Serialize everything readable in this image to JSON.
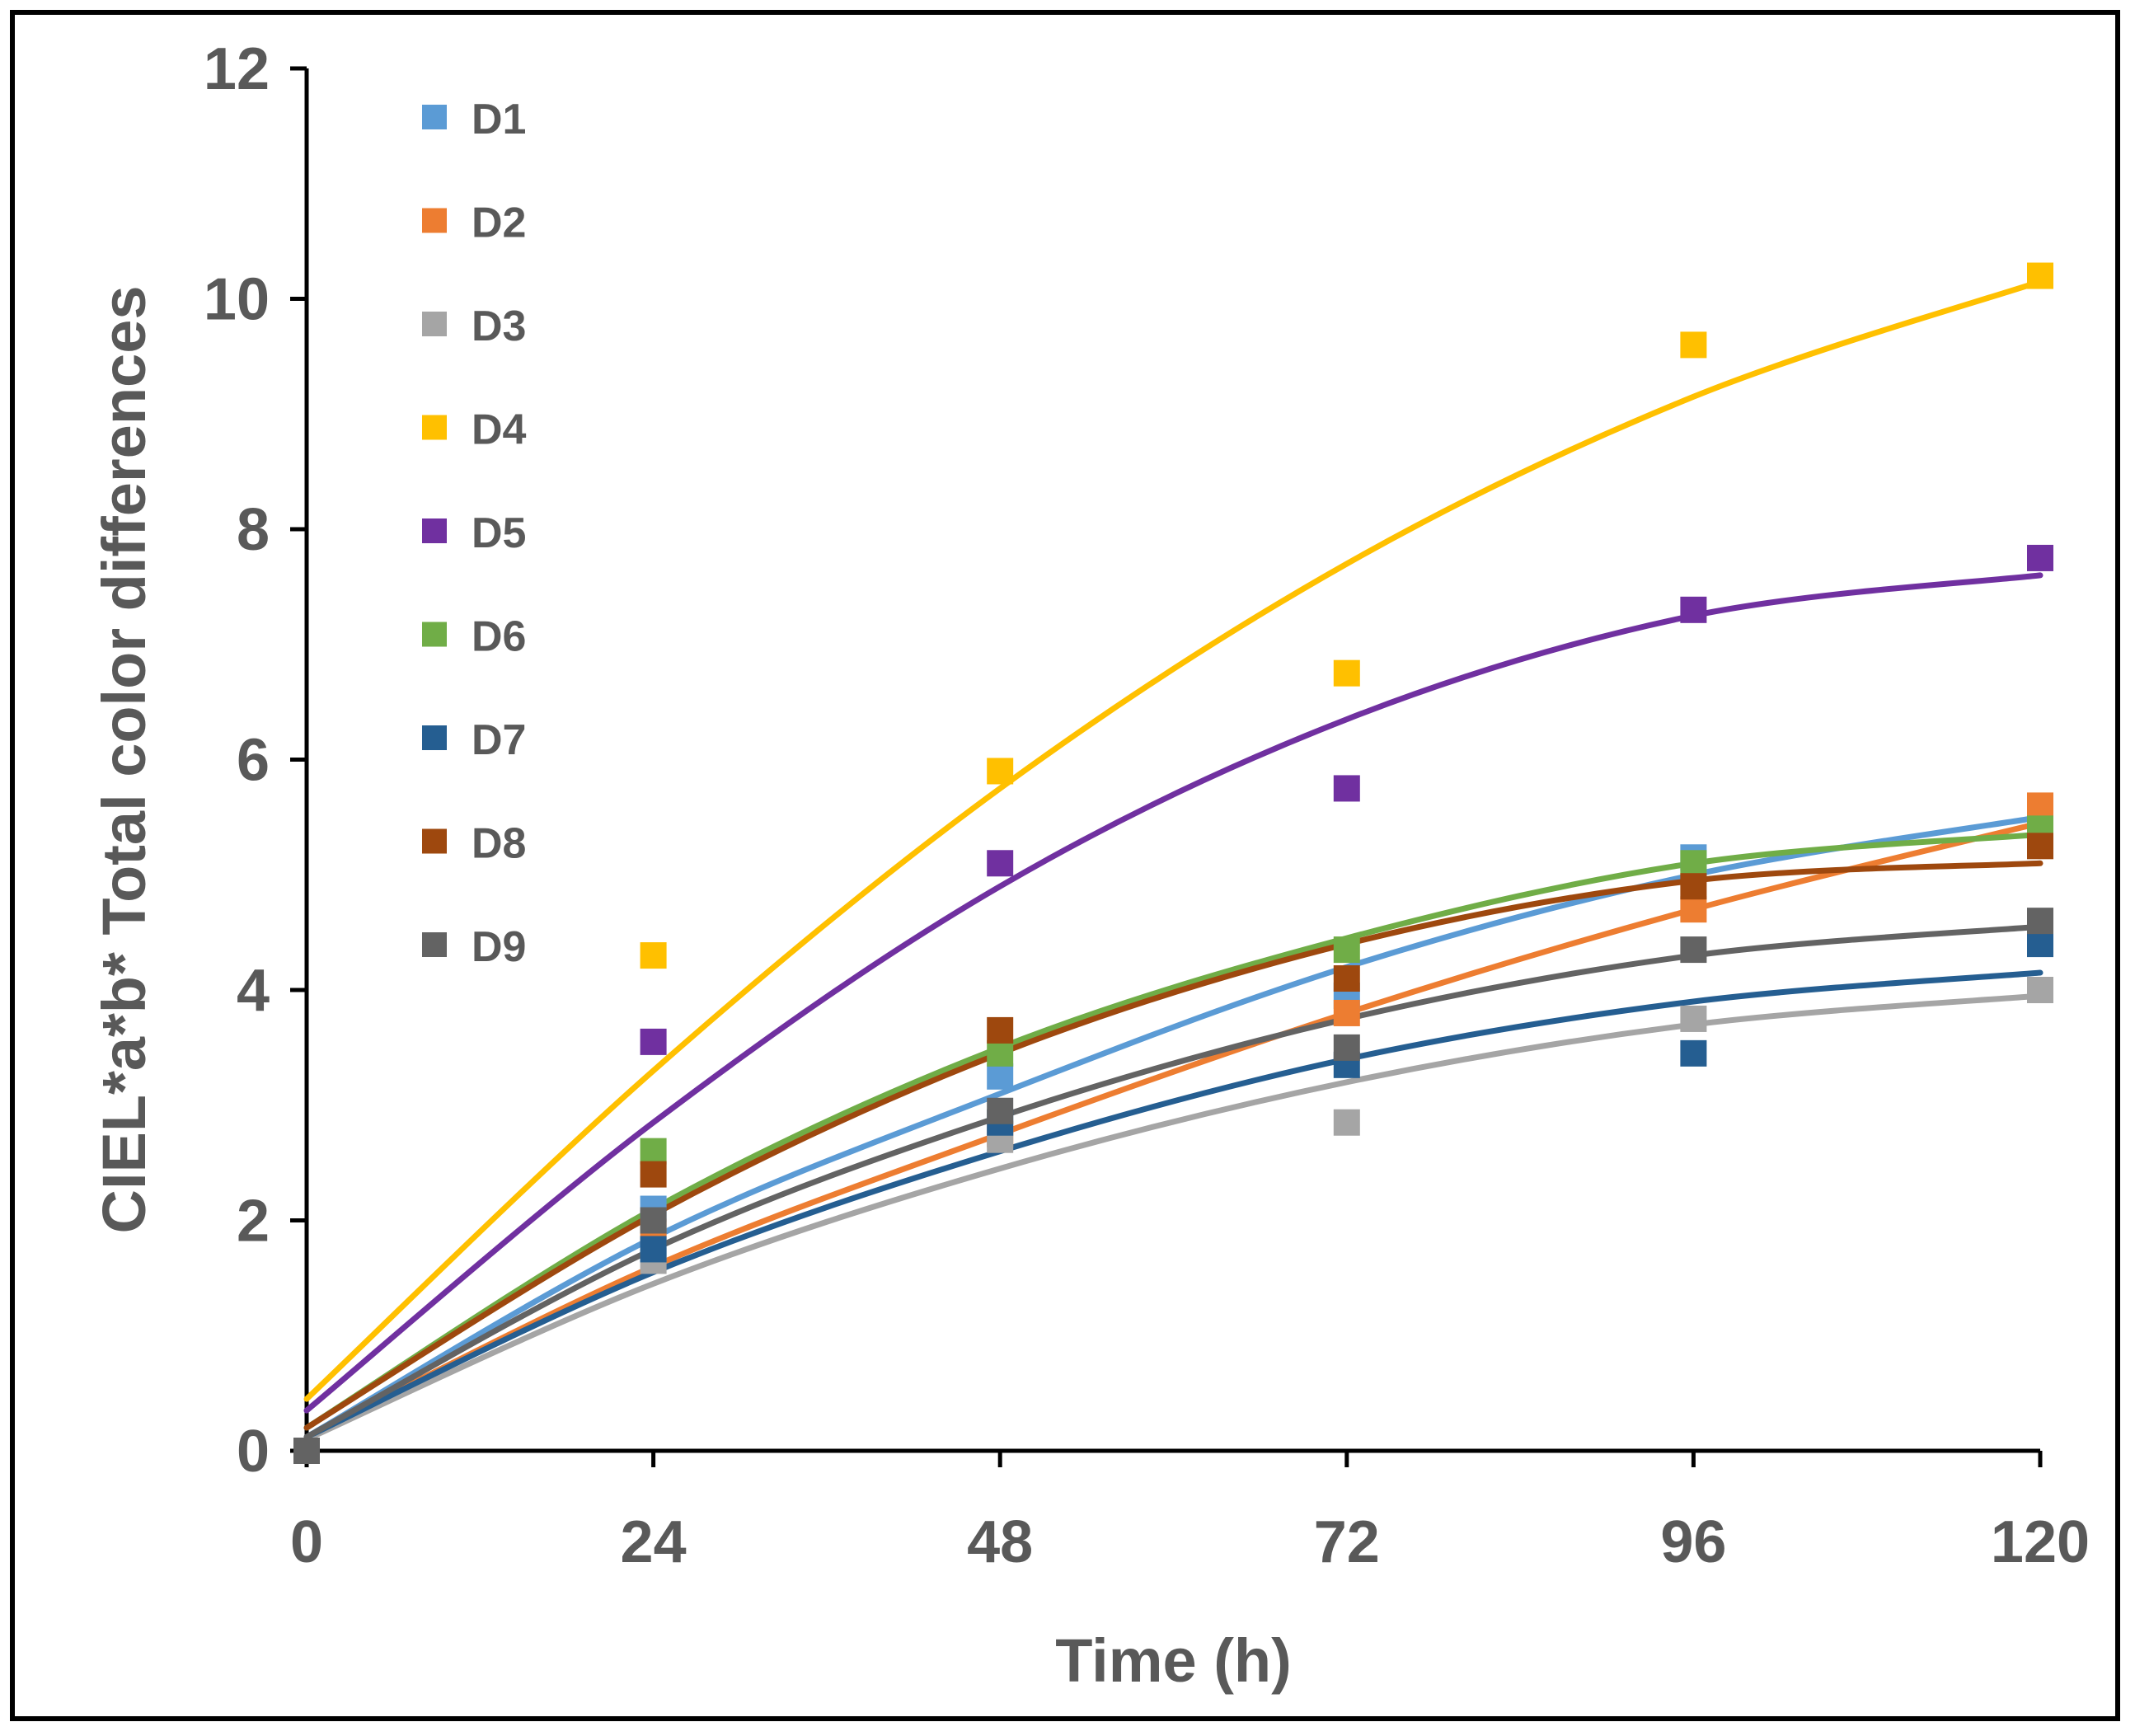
{
  "chart_data": {
    "type": "scatter",
    "xlabel": "Time (h)",
    "ylabel": "CIEL*a*b* Total color differences",
    "x": [
      0,
      24,
      48,
      72,
      96,
      120
    ],
    "xlim": [
      0,
      120
    ],
    "ylim": [
      0,
      12
    ],
    "xticks": [
      "0",
      "24",
      "48",
      "72",
      "96",
      "120"
    ],
    "yticks": [
      "0",
      "2",
      "4",
      "6",
      "8",
      "10",
      "12"
    ],
    "grid": false,
    "legend_position": "top-left",
    "series": [
      {
        "name": "D1",
        "color": "#5B9BD5",
        "values": [
          0,
          2.1,
          3.25,
          3.95,
          5.15,
          5.5
        ],
        "trend": [
          0.12,
          1.85,
          3.1,
          4.2,
          5.0,
          5.5
        ]
      },
      {
        "name": "D2",
        "color": "#ED7D31",
        "values": [
          0,
          1.9,
          2.75,
          3.8,
          4.7,
          5.6
        ],
        "trend": [
          0.12,
          1.6,
          2.75,
          3.8,
          4.7,
          5.45
        ]
      },
      {
        "name": "D3",
        "color": "#A5A5A5",
        "values": [
          0,
          1.65,
          2.7,
          2.85,
          3.75,
          4.0
        ],
        "trend": [
          0.1,
          1.45,
          2.45,
          3.2,
          3.7,
          3.95
        ]
      },
      {
        "name": "D4",
        "color": "#FFC000",
        "values": [
          0,
          4.3,
          5.9,
          6.75,
          9.6,
          10.2
        ],
        "trend": [
          0.45,
          3.3,
          5.75,
          7.7,
          9.15,
          10.15
        ]
      },
      {
        "name": "D5",
        "color": "#7030A0",
        "values": [
          0,
          3.55,
          5.1,
          5.75,
          7.3,
          7.75
        ],
        "trend": [
          0.35,
          2.85,
          4.9,
          6.35,
          7.25,
          7.6
        ]
      },
      {
        "name": "D6",
        "color": "#70AD47",
        "values": [
          0,
          2.6,
          3.45,
          4.35,
          5.1,
          5.4
        ],
        "trend": [
          0.2,
          2.1,
          3.5,
          4.45,
          5.1,
          5.35
        ]
      },
      {
        "name": "D7",
        "color": "#255E91",
        "values": [
          0,
          1.75,
          2.85,
          3.35,
          3.45,
          4.4
        ],
        "trend": [
          0.12,
          1.55,
          2.6,
          3.4,
          3.9,
          4.15
        ]
      },
      {
        "name": "D8",
        "color": "#9E480E",
        "values": [
          0,
          2.4,
          3.65,
          4.1,
          4.9,
          5.25
        ],
        "trend": [
          0.2,
          2.05,
          3.45,
          4.4,
          4.95,
          5.1
        ]
      },
      {
        "name": "D9",
        "color": "#636363",
        "values": [
          0,
          2.0,
          2.95,
          3.5,
          4.35,
          4.6
        ],
        "trend": [
          0.12,
          1.75,
          2.9,
          3.75,
          4.3,
          4.55
        ]
      }
    ]
  }
}
